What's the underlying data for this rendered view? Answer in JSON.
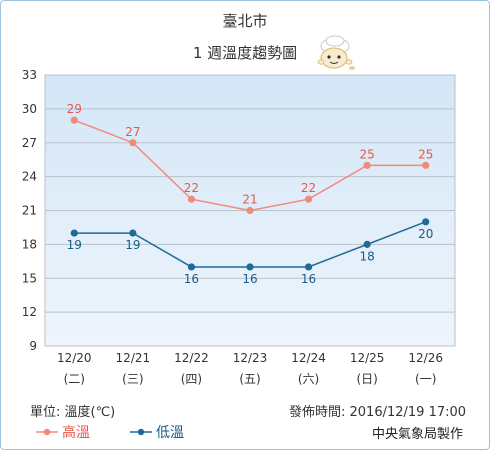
{
  "page": {
    "city": "臺北市",
    "subtitle": "1 週溫度趨勢圖",
    "unit_label": "單位: 溫度(℃)",
    "publish_time": "發佈時間: 2016/12/19 17:00",
    "agency": "中央氣象局製作",
    "mascot_icon": "weather-mascot-icon"
  },
  "chart_data": {
    "type": "line",
    "categories": [
      "12/20",
      "12/21",
      "12/22",
      "12/23",
      "12/24",
      "12/25",
      "12/26"
    ],
    "weekdays": [
      "(二)",
      "(三)",
      "(四)",
      "(五)",
      "(六)",
      "(日)",
      "(一)"
    ],
    "ylim": [
      9,
      33
    ],
    "yticks": [
      9,
      12,
      15,
      18,
      21,
      24,
      27,
      30,
      33
    ],
    "grid": true,
    "series": [
      {
        "name": "高溫",
        "color": "#f08a79",
        "label_color": "#e8574a",
        "values": [
          29,
          27,
          22,
          21,
          22,
          25,
          25
        ]
      },
      {
        "name": "低溫",
        "color": "#1f6a96",
        "label_color": "#1a5b86",
        "values": [
          19,
          19,
          16,
          16,
          16,
          18,
          20
        ]
      }
    ],
    "legend": "bottom-left"
  }
}
